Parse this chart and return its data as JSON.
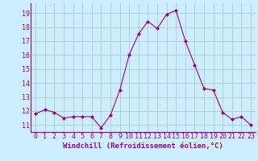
{
  "x": [
    0,
    1,
    2,
    3,
    4,
    5,
    6,
    7,
    8,
    9,
    10,
    11,
    12,
    13,
    14,
    15,
    16,
    17,
    18,
    19,
    20,
    21,
    22,
    23
  ],
  "y": [
    11.8,
    12.1,
    11.9,
    11.5,
    11.6,
    11.6,
    11.6,
    10.8,
    11.7,
    13.5,
    16.0,
    17.5,
    18.4,
    17.9,
    18.9,
    19.2,
    17.0,
    15.3,
    13.6,
    13.5,
    11.9,
    11.4,
    11.6,
    11.0
  ],
  "line_color": "#990099",
  "marker": "D",
  "marker_size": 2.0,
  "bg_color": "#cceeff",
  "grid_color": "#aacccc",
  "xlabel": "Windchill (Refroidissement éolien,°C)",
  "xlabel_color": "#990099",
  "xlabel_fontsize": 6.5,
  "tick_color": "#990099",
  "tick_fontsize": 6.0,
  "ylim": [
    10.5,
    19.7
  ],
  "yticks": [
    11,
    12,
    13,
    14,
    15,
    16,
    17,
    18,
    19
  ],
  "xticks": [
    0,
    1,
    2,
    3,
    4,
    5,
    6,
    7,
    8,
    9,
    10,
    11,
    12,
    13,
    14,
    15,
    16,
    17,
    18,
    19,
    20,
    21,
    22,
    23
  ],
  "xlim": [
    -0.5,
    23.5
  ]
}
